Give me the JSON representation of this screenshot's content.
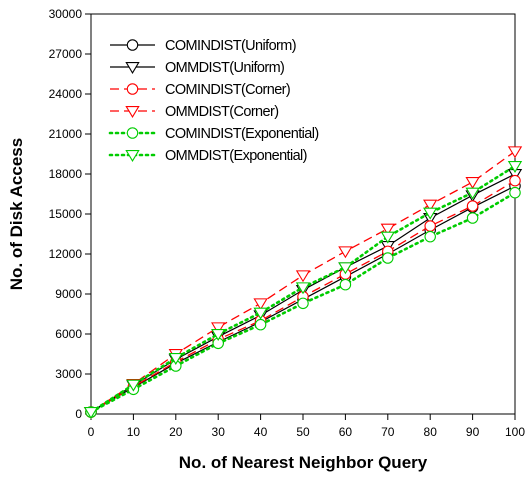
{
  "chart_data": {
    "type": "line",
    "title": "",
    "xlabel": "No. of Nearest Neighbor Query",
    "ylabel": "No. of Disk Access",
    "xlim": [
      0,
      100
    ],
    "ylim": [
      0,
      30000
    ],
    "x_ticks": [
      0,
      10,
      20,
      30,
      40,
      50,
      60,
      70,
      80,
      90,
      100
    ],
    "y_ticks": [
      0,
      3000,
      6000,
      9000,
      12000,
      15000,
      18000,
      21000,
      24000,
      27000,
      30000
    ],
    "grid": false,
    "legend_position": "top-left",
    "x": [
      0,
      10,
      20,
      30,
      40,
      50,
      60,
      70,
      80,
      90,
      100
    ],
    "series": [
      {
        "name": "COMINDIST(Uniform)",
        "color": "#000000",
        "dash": "solid",
        "marker": "circle",
        "values": [
          150,
          2000,
          3800,
          5400,
          6900,
          8600,
          10300,
          12000,
          13800,
          15500,
          17100
        ]
      },
      {
        "name": "OMMDIST(Uniform)",
        "color": "#000000",
        "dash": "solid",
        "marker": "triangle-down",
        "values": [
          150,
          2150,
          4100,
          5800,
          7400,
          9300,
          11000,
          12600,
          14700,
          16400,
          18000
        ]
      },
      {
        "name": "COMINDIST(Corner)",
        "color": "#ff0000",
        "dash": "dash",
        "marker": "circle",
        "values": [
          150,
          2050,
          3900,
          5600,
          7000,
          8800,
          10500,
          12200,
          14100,
          15600,
          17500
        ]
      },
      {
        "name": "OMMDIST(Corner)",
        "color": "#ff0000",
        "dash": "dash",
        "marker": "triangle-down",
        "values": [
          150,
          2250,
          4500,
          6500,
          8300,
          10400,
          12200,
          13900,
          15700,
          17400,
          19700
        ]
      },
      {
        "name": "COMINDIST(Exponential)",
        "color": "#00cc00",
        "dash": "dot",
        "marker": "circle",
        "values": [
          150,
          1850,
          3600,
          5300,
          6700,
          8300,
          9700,
          11700,
          13300,
          14700,
          16600
        ]
      },
      {
        "name": "OMMDIST(Exponential)",
        "color": "#00cc00",
        "dash": "dot",
        "marker": "triangle-down",
        "values": [
          150,
          2200,
          4200,
          6000,
          7600,
          9500,
          11000,
          13300,
          15100,
          16600,
          18600
        ]
      }
    ]
  }
}
